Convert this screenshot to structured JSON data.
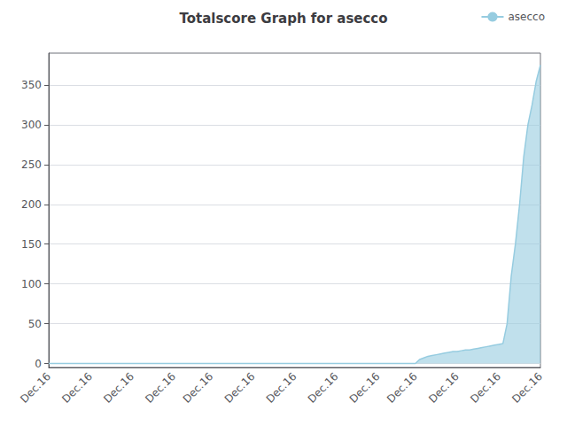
{
  "chart_data": {
    "type": "area",
    "title": "Totalscore Graph for asecco",
    "categories": [
      "Dec.16",
      null,
      null,
      null,
      null,
      null,
      null,
      null,
      null,
      null,
      "Dec.16",
      null,
      null,
      null,
      null,
      null,
      null,
      null,
      null,
      null,
      "Dec.16",
      null,
      null,
      null,
      null,
      null,
      null,
      null,
      null,
      null,
      "Dec.16",
      null,
      null,
      null,
      null,
      null,
      null,
      null,
      null,
      "Dec.16",
      null,
      null,
      null,
      null,
      null,
      null,
      null,
      null,
      null,
      "Dec.16",
      null,
      null,
      null,
      null,
      null,
      null,
      null,
      null,
      null,
      "Dec.16",
      null,
      null,
      null,
      null,
      null,
      null,
      null,
      null,
      null,
      "Dec.16",
      null,
      null,
      null,
      null,
      null,
      null,
      null,
      null,
      null,
      "Dec.16",
      null,
      null,
      null,
      null,
      null,
      null,
      null,
      null,
      "Dec.16",
      null,
      null,
      null,
      null,
      null,
      null,
      null,
      null,
      null,
      "Dec.16",
      null,
      null,
      null,
      null,
      null,
      null,
      null,
      null,
      null,
      "Dec.16",
      null,
      null,
      null,
      null,
      null,
      null,
      null,
      null,
      null,
      "Dec.16"
    ],
    "series": [
      {
        "name": "asecco",
        "color": "#96cce0",
        "values": [
          0,
          0,
          0,
          0,
          0,
          0,
          0,
          0,
          0,
          0,
          0,
          0,
          0,
          0,
          0,
          0,
          0,
          0,
          0,
          0,
          0,
          0,
          0,
          0,
          0,
          0,
          0,
          0,
          0,
          0,
          0,
          0,
          0,
          0,
          0,
          0,
          0,
          0,
          0,
          0,
          0,
          0,
          0,
          0,
          0,
          0,
          0,
          0,
          0,
          0,
          0,
          0,
          0,
          0,
          0,
          0,
          0,
          0,
          0,
          0,
          0,
          0,
          0,
          0,
          0,
          0,
          0,
          0,
          0,
          0,
          0,
          0,
          0,
          0,
          0,
          0,
          0,
          0,
          0,
          0,
          0,
          0,
          0,
          0,
          0,
          0,
          0,
          0,
          0,
          5,
          7,
          9,
          10,
          11,
          12,
          13,
          14,
          15,
          15,
          16,
          17,
          17,
          18,
          19,
          20,
          21,
          22,
          23,
          24,
          25,
          50,
          110,
          150,
          200,
          260,
          300,
          325,
          355,
          375
        ]
      }
    ],
    "ylim": [
      -5,
      390
    ],
    "yticks": [
      0,
      50,
      100,
      150,
      200,
      250,
      300,
      350
    ],
    "grid": true,
    "legend": "upper right"
  }
}
